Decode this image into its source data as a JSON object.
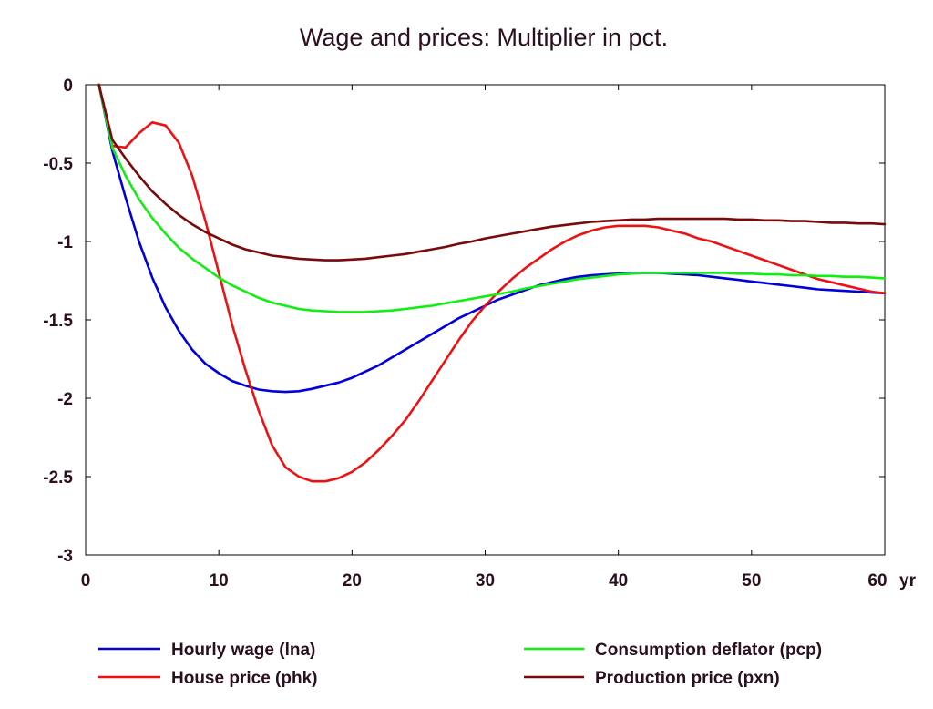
{
  "chart_data": {
    "type": "line",
    "title": "Wage and prices: Multiplier in pct.",
    "xlabel": "",
    "ylabel": "",
    "x_unit_label": "yr",
    "xlim": [
      0,
      60
    ],
    "ylim": [
      -3,
      0
    ],
    "x_ticks": [
      {
        "value": 0,
        "label": "0"
      },
      {
        "value": 10,
        "label": "10"
      },
      {
        "value": 20,
        "label": "20"
      },
      {
        "value": 30,
        "label": "30"
      },
      {
        "value": 40,
        "label": "40"
      },
      {
        "value": 50,
        "label": "50"
      },
      {
        "value": 60,
        "label": "60"
      }
    ],
    "y_ticks": [
      {
        "value": 0,
        "label": "0"
      },
      {
        "value": -0.5,
        "label": "-0.5"
      },
      {
        "value": -1,
        "label": "-1"
      },
      {
        "value": -1.5,
        "label": "-1.5"
      },
      {
        "value": -2,
        "label": "-2"
      },
      {
        "value": -2.5,
        "label": "-2.5"
      },
      {
        "value": -3,
        "label": "-3"
      }
    ],
    "grid": false,
    "legend_position": "bottom",
    "x": [
      1,
      2,
      3,
      4,
      5,
      6,
      7,
      8,
      9,
      10,
      11,
      12,
      13,
      14,
      15,
      16,
      17,
      18,
      19,
      20,
      21,
      22,
      23,
      24,
      25,
      26,
      27,
      28,
      29,
      30,
      31,
      32,
      33,
      34,
      35,
      36,
      37,
      38,
      39,
      40,
      41,
      42,
      43,
      44,
      45,
      46,
      47,
      48,
      49,
      50,
      51,
      52,
      53,
      54,
      55,
      56,
      57,
      58,
      59,
      60
    ],
    "series": [
      {
        "name": "Hourly wage (lna)",
        "color": "#0000dd",
        "values": [
          0,
          -0.42,
          -0.72,
          -1.0,
          -1.23,
          -1.42,
          -1.57,
          -1.69,
          -1.78,
          -1.84,
          -1.89,
          -1.92,
          -1.945,
          -1.955,
          -1.96,
          -1.955,
          -1.94,
          -1.92,
          -1.9,
          -1.87,
          -1.83,
          -1.79,
          -1.74,
          -1.69,
          -1.64,
          -1.59,
          -1.54,
          -1.49,
          -1.45,
          -1.41,
          -1.37,
          -1.34,
          -1.31,
          -1.28,
          -1.26,
          -1.24,
          -1.225,
          -1.215,
          -1.21,
          -1.205,
          -1.2,
          -1.2,
          -1.2,
          -1.205,
          -1.21,
          -1.215,
          -1.225,
          -1.235,
          -1.245,
          -1.255,
          -1.265,
          -1.275,
          -1.285,
          -1.295,
          -1.305,
          -1.31,
          -1.315,
          -1.32,
          -1.325,
          -1.33
        ]
      },
      {
        "name": "House price (phk)",
        "color": "#ee1111",
        "values": [
          0,
          -0.39,
          -0.4,
          -0.31,
          -0.24,
          -0.26,
          -0.37,
          -0.58,
          -0.87,
          -1.2,
          -1.53,
          -1.82,
          -2.08,
          -2.3,
          -2.44,
          -2.5,
          -2.53,
          -2.53,
          -2.51,
          -2.47,
          -2.41,
          -2.33,
          -2.24,
          -2.14,
          -2.02,
          -1.89,
          -1.76,
          -1.63,
          -1.51,
          -1.41,
          -1.32,
          -1.24,
          -1.17,
          -1.11,
          -1.05,
          -1.0,
          -0.96,
          -0.93,
          -0.91,
          -0.9,
          -0.9,
          -0.9,
          -0.91,
          -0.93,
          -0.95,
          -0.98,
          -1.0,
          -1.03,
          -1.06,
          -1.09,
          -1.12,
          -1.15,
          -1.18,
          -1.21,
          -1.24,
          -1.26,
          -1.28,
          -1.3,
          -1.32,
          -1.33
        ]
      },
      {
        "name": "Consumption deflator (pcp)",
        "color": "#11ee11",
        "values": [
          0,
          -0.4,
          -0.58,
          -0.73,
          -0.85,
          -0.95,
          -1.04,
          -1.11,
          -1.17,
          -1.23,
          -1.28,
          -1.32,
          -1.36,
          -1.39,
          -1.41,
          -1.43,
          -1.44,
          -1.445,
          -1.45,
          -1.45,
          -1.45,
          -1.445,
          -1.44,
          -1.43,
          -1.42,
          -1.41,
          -1.395,
          -1.38,
          -1.365,
          -1.35,
          -1.335,
          -1.32,
          -1.3,
          -1.285,
          -1.27,
          -1.255,
          -1.24,
          -1.23,
          -1.22,
          -1.21,
          -1.205,
          -1.2,
          -1.2,
          -1.2,
          -1.2,
          -1.2,
          -1.2,
          -1.2,
          -1.205,
          -1.205,
          -1.21,
          -1.21,
          -1.215,
          -1.215,
          -1.22,
          -1.22,
          -1.225,
          -1.225,
          -1.23,
          -1.235
        ]
      },
      {
        "name": "Production price (pxn)",
        "color": "#7a0a0a",
        "values": [
          0,
          -0.35,
          -0.47,
          -0.58,
          -0.68,
          -0.76,
          -0.83,
          -0.89,
          -0.94,
          -0.98,
          -1.02,
          -1.05,
          -1.07,
          -1.09,
          -1.1,
          -1.11,
          -1.115,
          -1.12,
          -1.12,
          -1.115,
          -1.11,
          -1.1,
          -1.09,
          -1.08,
          -1.065,
          -1.05,
          -1.035,
          -1.015,
          -1.0,
          -0.98,
          -0.965,
          -0.95,
          -0.935,
          -0.92,
          -0.905,
          -0.895,
          -0.885,
          -0.875,
          -0.87,
          -0.865,
          -0.86,
          -0.86,
          -0.855,
          -0.855,
          -0.855,
          -0.855,
          -0.855,
          -0.855,
          -0.86,
          -0.86,
          -0.865,
          -0.865,
          -0.87,
          -0.87,
          -0.875,
          -0.88,
          -0.88,
          -0.885,
          -0.885,
          -0.89
        ]
      }
    ]
  }
}
